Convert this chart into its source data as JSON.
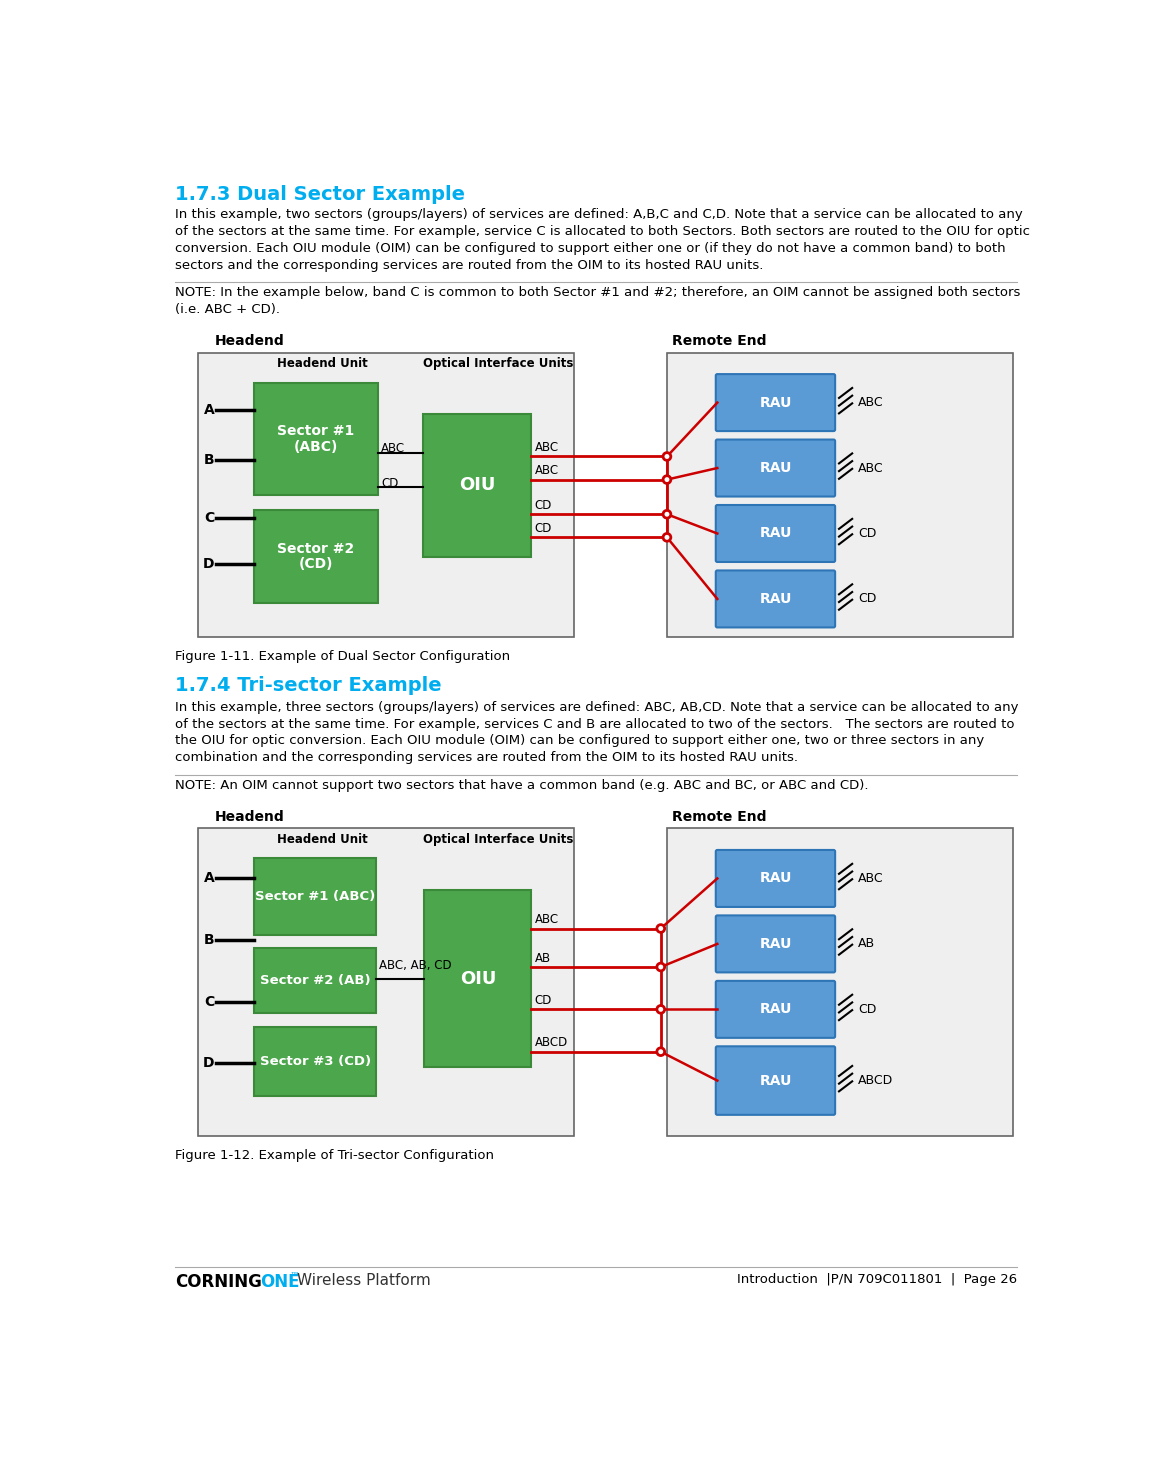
{
  "title_173": "1.7.3 Dual Sector Example",
  "title_174": "1.7.4 Tri-sector Example",
  "title_color": "#00AEEF",
  "body_color": "#000000",
  "green_color": "#4CA64C",
  "green_dark": "#3A8A3A",
  "bg_color": "#FFFFFF",
  "red_line_color": "#CC0000",
  "rau_color": "#5B9BD5",
  "rau_dark": "#2E75B6",
  "text_173": "In this example, two sectors (groups/layers) of services are defined: A,B,C and C,D. Note that a service can be allocated to any of the sectors at the same time. For example, service C is allocated to both Sectors. Both sectors are routed to the OIU for optic conversion. Each OIU module (OIM) can be configured to support either one or (if they do not have a common band) to both sectors and the corresponding services are routed from the OIM to its hosted RAU units.",
  "note_173": "NOTE: In the example below, band C is common to both Sector #1 and #2; therefore, an OIM cannot be assigned both sectors\n(i.e. ABC + CD).",
  "fig_173": "Figure 1-11. Example of Dual Sector Configuration",
  "text_174": "In this example, three sectors (groups/layers) of services are defined: ABC, AB,CD. Note that a service can be allocated to any of the sectors at the same time. For example, services C and B are allocated to two of the sectors.   The sectors are routed to the OIU for optic conversion. Each OIU module (OIM) can be configured to support either one, two or three sectors in any combination and the corresponding services are routed from the OIM to its hosted RAU units.",
  "note_174": "NOTE: An OIM cannot support two sectors that have a common band (e.g. ABC and BC, or ABC and CD).",
  "fig_174": "Figure 1-12. Example of Tri-sector Configuration",
  "footer_right": "Introduction  |P/N 709C011801  |  Page 26"
}
